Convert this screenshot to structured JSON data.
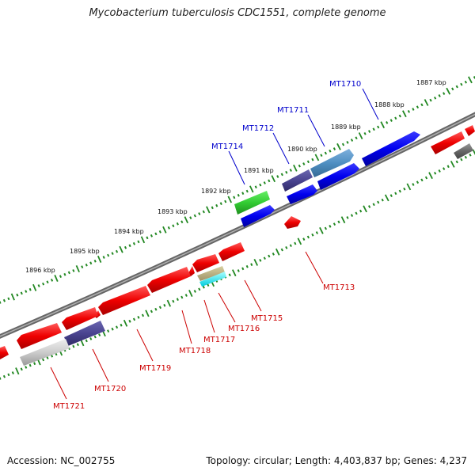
{
  "title": "Mycobacterium tuberculosis CDC1551, complete genome",
  "footer": {
    "accession": "Accession: NC_002755",
    "info": "Topology: circular; Length: 4,403,837 bp; Genes: 4,237"
  },
  "colors": {
    "backbone": "#888888",
    "tick": "#228822",
    "forward_label": "#0000cc",
    "reverse_label": "#cc0000"
  },
  "ruler": [
    "1887 kbp",
    "1888 kbp",
    "1889 kbp",
    "1890 kbp",
    "1891 kbp",
    "1892 kbp",
    "1893 kbp",
    "1894 kbp",
    "1895 kbp",
    "1896 kbp"
  ],
  "gene_labels": {
    "forward": [
      "MT1710",
      "MT1711",
      "MT1712",
      "MT1714"
    ],
    "reverse": [
      "MT1713",
      "MT1715",
      "MT1716",
      "MT1717",
      "MT1718",
      "MT1719",
      "MT1720",
      "MT1721"
    ]
  }
}
